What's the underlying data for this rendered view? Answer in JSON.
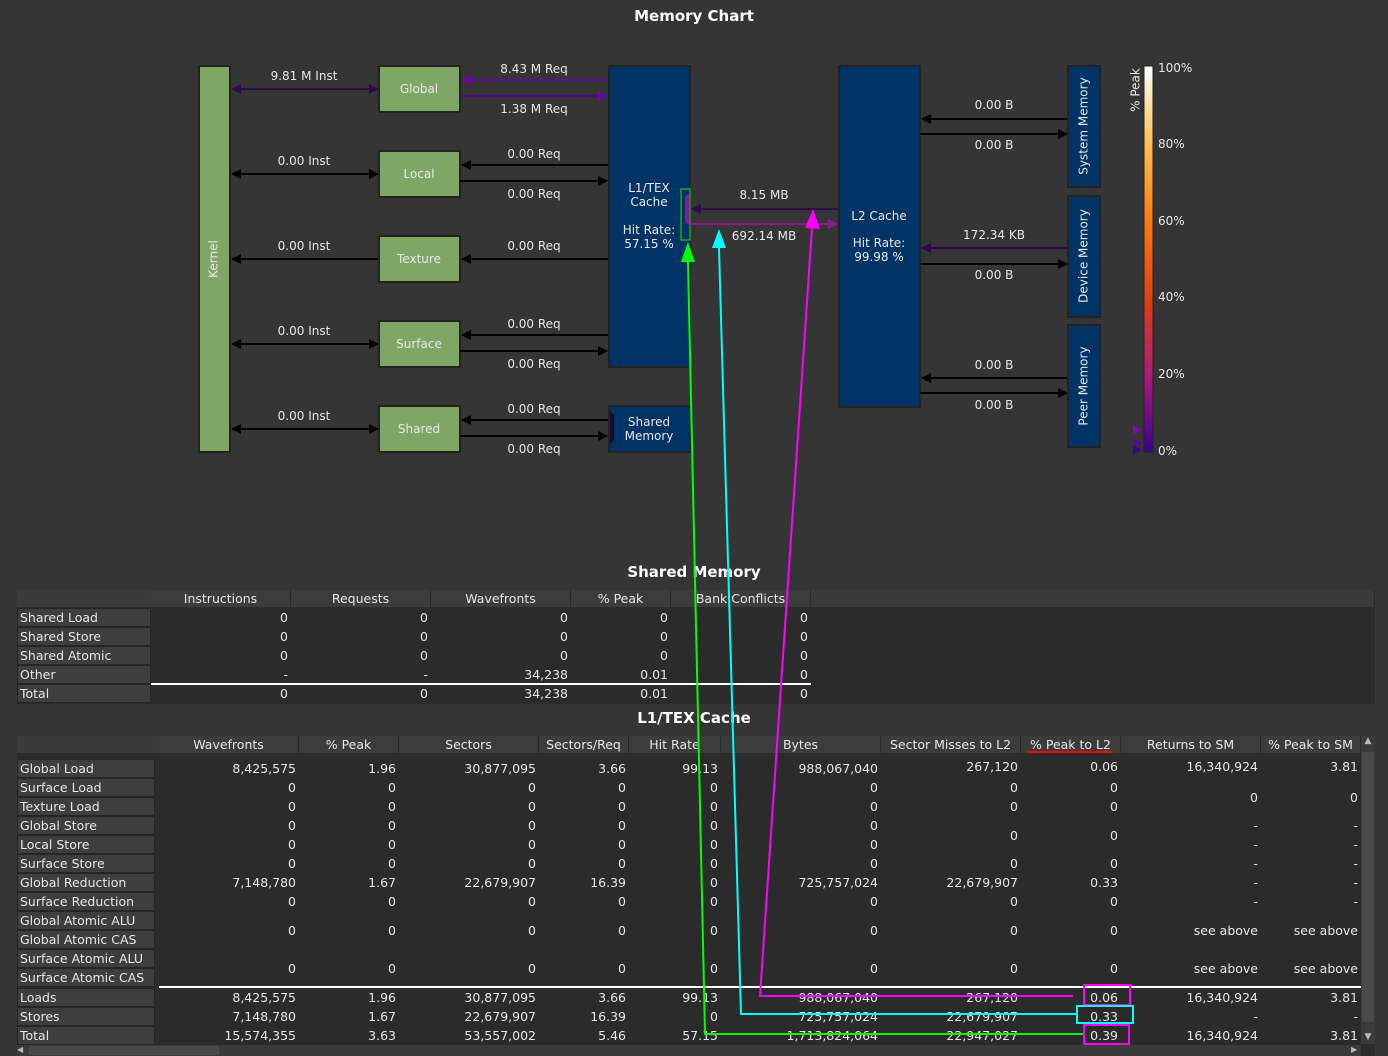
{
  "memory_chart": {
    "title": "Memory Chart",
    "kernel": "Kernel",
    "units": [
      {
        "name": "Global",
        "inst": "9.81 M Inst",
        "req_in": "8.43 M Req",
        "req_out": "1.38 M Req"
      },
      {
        "name": "Local",
        "inst": "0.00 Inst",
        "req_in": "0.00 Req",
        "req_out": "0.00 Req"
      },
      {
        "name": "Texture",
        "inst": "0.00 Inst",
        "req_in": "0.00 Req"
      },
      {
        "name": "Surface",
        "inst": "0.00 Inst",
        "req_in": "0.00 Req",
        "req_out": "0.00 Req"
      },
      {
        "name": "Shared",
        "inst": "0.00 Inst",
        "req_in": "0.00 Req",
        "req_out": "0.00 Req"
      }
    ],
    "l1": {
      "line1": "L1/TEX",
      "line2": "Cache",
      "hit_label": "Hit Rate:",
      "hit_value": "57.15 %"
    },
    "shared_memory": {
      "line1": "Shared",
      "line2": "Memory"
    },
    "l1_l2": {
      "to_l1": "8.15 MB",
      "to_l2": "692.14 MB"
    },
    "l2": {
      "name": "L2 Cache",
      "hit_label": "Hit Rate:",
      "hit_value": "99.98 %"
    },
    "memories": [
      {
        "name": "System Memory",
        "read": "0.00 B",
        "write": "0.00 B"
      },
      {
        "name": "Device Memory",
        "read": "172.34 KB",
        "write": "0.00 B"
      },
      {
        "name": "Peer Memory",
        "read": "0.00 B",
        "write": "0.00 B"
      }
    ],
    "legend": {
      "title": "% Peak",
      "ticks": [
        "100%",
        "80%",
        "60%",
        "40%",
        "20%",
        "0%"
      ]
    },
    "colors": {
      "unit_box": "#80a665",
      "cache_box": "#003366",
      "high_traffic": "#6a0a9a",
      "overlay_green": "#00ff00",
      "overlay_cyan": "#00ffff",
      "overlay_magenta": "#ff00ff"
    }
  },
  "shared_table": {
    "title": "Shared Memory",
    "columns": [
      "Instructions",
      "Requests",
      "Wavefronts",
      "% Peak",
      "Bank Conflicts"
    ],
    "rows": [
      {
        "label": "Shared Load",
        "cells": [
          "0",
          "0",
          "0",
          "0",
          "0"
        ]
      },
      {
        "label": "Shared Store",
        "cells": [
          "0",
          "0",
          "0",
          "0",
          "0"
        ]
      },
      {
        "label": "Shared Atomic",
        "cells": [
          "0",
          "0",
          "0",
          "0",
          "0"
        ]
      },
      {
        "label": "Other",
        "cells": [
          "-",
          "-",
          "34,238",
          "0.01",
          "0"
        ]
      },
      {
        "label": "Total",
        "cells": [
          "0",
          "0",
          "34,238",
          "0.01",
          "0"
        ]
      }
    ]
  },
  "l1tex_table": {
    "title": "L1/TEX Cache",
    "columns": [
      "Wavefronts",
      "% Peak",
      "Sectors",
      "Sectors/Req",
      "Hit Rate",
      "Bytes",
      "Sector Misses to L2",
      "% Peak to L2",
      "Returns to SM",
      "% Peak to SM"
    ],
    "rows": [
      {
        "label": "Global Load",
        "cells": [
          "8,425,575",
          "1.96",
          "30,877,095",
          "3.66",
          "99.13",
          "988,067,040",
          "267,120",
          "0.06",
          "16,340,924",
          "3.81"
        ]
      },
      {
        "label": "Surface Load",
        "cells": [
          "0",
          "0",
          "0",
          "0",
          "0",
          "0",
          "0",
          "0",
          "0",
          "0"
        ]
      },
      {
        "label": "Texture Load",
        "cells": [
          "0",
          "0",
          "0",
          "0",
          "0",
          "0",
          "0",
          "0",
          null,
          null
        ]
      },
      {
        "label": "Global Store",
        "cells": [
          "0",
          "0",
          "0",
          "0",
          "0",
          "0",
          "0",
          "0",
          "-",
          "-"
        ]
      },
      {
        "label": "Local Store",
        "cells": [
          "0",
          "0",
          "0",
          "0",
          "0",
          "0",
          null,
          null,
          "-",
          "-"
        ]
      },
      {
        "label": "Surface Store",
        "cells": [
          "0",
          "0",
          "0",
          "0",
          "0",
          "0",
          "0",
          "0",
          "-",
          "-"
        ]
      },
      {
        "label": "Global Reduction",
        "cells": [
          "7,148,780",
          "1.67",
          "22,679,907",
          "16.39",
          "0",
          "725,757,024",
          "22,679,907",
          "0.33",
          "-",
          "-"
        ]
      },
      {
        "label": "Surface Reduction",
        "cells": [
          "0",
          "0",
          "0",
          "0",
          "0",
          "0",
          "0",
          "0",
          "-",
          "-"
        ]
      },
      {
        "label": "Global Atomic ALU",
        "cells": [
          "0",
          "0",
          "0",
          "0",
          "0",
          "0",
          "0",
          "0",
          "see above",
          "see above"
        ]
      },
      {
        "label": "Global Atomic CAS",
        "cells": [
          null,
          null,
          null,
          null,
          null,
          null,
          null,
          null,
          null,
          null
        ]
      },
      {
        "label": "Surface Atomic ALU",
        "cells": [
          "0",
          "0",
          "0",
          "0",
          "0",
          "0",
          "0",
          "0",
          "see above",
          "see above"
        ]
      },
      {
        "label": "Surface Atomic CAS",
        "cells": [
          null,
          null,
          null,
          null,
          null,
          null,
          null,
          null,
          null,
          null
        ]
      }
    ],
    "summary": [
      {
        "label": "Loads",
        "cells": [
          "8,425,575",
          "1.96",
          "30,877,095",
          "3.66",
          "99.13",
          "988,067,040",
          "267,120",
          "0.06",
          "16,340,924",
          "3.81"
        ]
      },
      {
        "label": "Stores",
        "cells": [
          "7,148,780",
          "1.67",
          "22,679,907",
          "16.39",
          "0",
          "725,757,024",
          "22,679,907",
          "0.33",
          "-",
          "-"
        ]
      },
      {
        "label": "Total",
        "cells": [
          "15,574,355",
          "3.63",
          "53,557,002",
          "5.46",
          "57.15",
          "1,713,824,064",
          "22,947,027",
          "0.39",
          "16,340,924",
          "3.81"
        ]
      }
    ]
  }
}
